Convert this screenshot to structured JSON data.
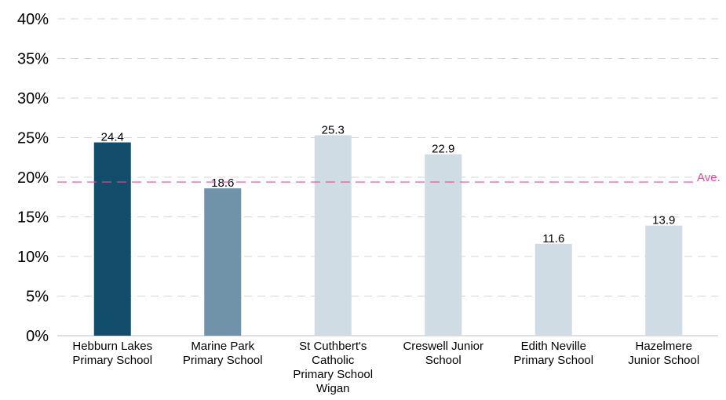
{
  "chart_data": {
    "type": "bar",
    "categories": [
      [
        "Hebburn Lakes",
        "Primary School"
      ],
      [
        "Marine Park",
        "Primary School"
      ],
      [
        "St Cuthbert's",
        "Catholic",
        "Primary School",
        "Wigan"
      ],
      [
        "Creswell Junior",
        "School"
      ],
      [
        "Edith Neville",
        "Primary School"
      ],
      [
        "Hazelmere",
        "Junior School"
      ]
    ],
    "values": [
      24.4,
      18.6,
      25.3,
      22.9,
      11.6,
      13.9
    ],
    "data_labels": [
      "24.4",
      "18.6",
      "25.3",
      "22.9",
      "11.6",
      "13.9"
    ],
    "bar_colors": [
      "#124e6b",
      "#7093aa",
      "#d0dce3",
      "#d0dce3",
      "#d0dce3",
      "#d0dce3"
    ],
    "ylim": [
      0,
      40
    ],
    "yticks": [
      0,
      5,
      10,
      15,
      20,
      25,
      30,
      35,
      40
    ],
    "ytick_labels": [
      "0%",
      "5%",
      "10%",
      "15%",
      "20%",
      "25%",
      "30%",
      "35%",
      "40%"
    ],
    "grid": true,
    "grid_style": "dashed",
    "grid_color": "#d4d4d4",
    "reference_line": {
      "label": "Ave.",
      "value": 19.4,
      "color": "#e8479a",
      "style": "dashed"
    }
  }
}
